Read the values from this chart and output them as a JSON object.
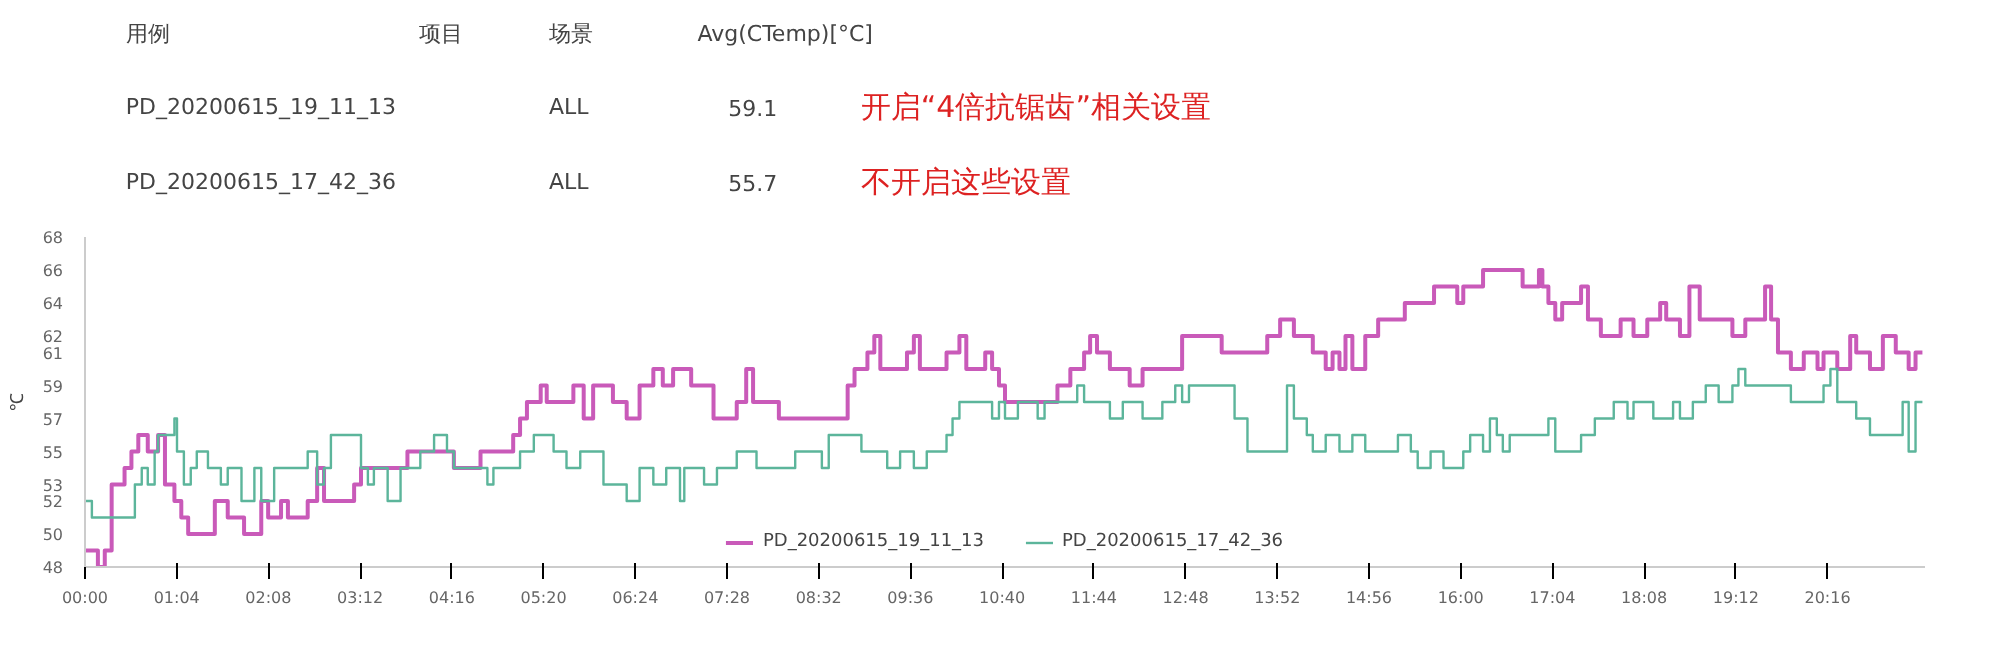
{
  "chart_data": {
    "type": "step",
    "ylabel": "℃",
    "annotations": [
      "用例",
      "项目",
      "场景",
      "Avg(CTemp)[°C]",
      "PD_20200615_19_11_13",
      "ALL",
      "59.1",
      "开启“4倍抗锯齿”相关设置",
      "PD_20200615_17_42_36",
      "ALL",
      "55.7",
      "不开启这些设置"
    ],
    "xlim": [
      0,
      21.4
    ],
    "xticks": [
      {
        "value": 0,
        "label": "00:00"
      },
      {
        "value": 1.0667,
        "label": "01:04"
      },
      {
        "value": 2.1333,
        "label": "02:08"
      },
      {
        "value": 3.2,
        "label": "03:12"
      },
      {
        "value": 4.2667,
        "label": "04:16"
      },
      {
        "value": 5.3333,
        "label": "05:20"
      },
      {
        "value": 6.4,
        "label": "06:24"
      },
      {
        "value": 7.4667,
        "label": "07:28"
      },
      {
        "value": 8.5333,
        "label": "08:32"
      },
      {
        "value": 9.6,
        "label": "09:36"
      },
      {
        "value": 10.6667,
        "label": "10:40"
      },
      {
        "value": 11.7333,
        "label": "11:44"
      },
      {
        "value": 12.8,
        "label": "12:48"
      },
      {
        "value": 13.8667,
        "label": "13:52"
      },
      {
        "value": 14.9333,
        "label": "14:56"
      },
      {
        "value": 16,
        "label": "16:00"
      },
      {
        "value": 17.0667,
        "label": "17:04"
      },
      {
        "value": 18.1333,
        "label": "18:08"
      },
      {
        "value": 19.2,
        "label": "19:12"
      },
      {
        "value": 20.2667,
        "label": "20:16"
      }
    ],
    "ylim": [
      48,
      68
    ],
    "yticks": [
      48,
      50,
      52,
      53,
      55,
      57,
      59,
      61,
      62,
      64,
      66,
      68
    ],
    "grid": false,
    "legend": "bottom",
    "series": [
      {
        "name": "PD_20200615_19_11_13",
        "color": "#c95ab9",
        "x": [
          0,
          0.15,
          0.23,
          0.31,
          0.46,
          0.54,
          0.62,
          0.73,
          0.85,
          0.93,
          1.04,
          1.12,
          1.2,
          1.43,
          1.51,
          1.66,
          1.85,
          2.05,
          2.13,
          2.28,
          2.36,
          2.59,
          2.7,
          2.78,
          3.05,
          3.13,
          3.21,
          3.52,
          3.75,
          3.98,
          4.29,
          4.6,
          4.91,
          4.98,
          5.06,
          5.14,
          5.3,
          5.37,
          5.6,
          5.68,
          5.8,
          5.91,
          6.14,
          6.3,
          6.45,
          6.61,
          6.72,
          6.84,
          7.01,
          7.05,
          7.2,
          7.31,
          7.5,
          7.58,
          7.69,
          7.77,
          7.96,
          8.07,
          8.34,
          8.8,
          8.87,
          8.95,
          9.1,
          9.18,
          9.25,
          9.56,
          9.64,
          9.71,
          10.02,
          10.17,
          10.25,
          10.47,
          10.55,
          10.63,
          10.7,
          11.16,
          11.31,
          11.46,
          11.62,
          11.69,
          11.77,
          11.92,
          12.15,
          12.3,
          12.53,
          12.76,
          12.99,
          13.22,
          13.37,
          13.67,
          13.75,
          13.9,
          13.98,
          14.06,
          14.28,
          14.43,
          14.51,
          14.59,
          14.66,
          14.74,
          14.89,
          15.04,
          15.19,
          15.35,
          15.5,
          15.69,
          15.88,
          15.96,
          16.03,
          16.26,
          16.57,
          16.72,
          16.91,
          16.95,
          17.02,
          17.1,
          17.18,
          17.33,
          17.4,
          17.48,
          17.63,
          17.86,
          18.01,
          18.17,
          18.32,
          18.39,
          18.55,
          18.66,
          18.78,
          18.93,
          19.16,
          19.31,
          19.46,
          19.54,
          19.61,
          19.69,
          19.84,
          19.99,
          20.15,
          20.22,
          20.38,
          20.53,
          20.6,
          20.76,
          20.91,
          21.06,
          21.21,
          21.29,
          21.37
        ],
        "values": [
          49,
          48,
          49,
          53,
          54,
          55,
          56,
          55,
          56,
          53,
          52,
          51,
          50,
          50,
          52,
          51,
          50,
          52,
          51,
          52,
          51,
          52,
          54,
          52,
          52,
          53,
          54,
          54,
          55,
          55,
          54,
          55,
          55,
          56,
          57,
          58,
          59,
          58,
          58,
          59,
          57,
          59,
          58,
          57,
          59,
          60,
          59,
          60,
          60,
          59,
          59,
          57,
          57,
          58,
          60,
          58,
          58,
          57,
          57,
          57,
          59,
          60,
          61,
          62,
          60,
          61,
          62,
          60,
          61,
          62,
          60,
          61,
          60,
          59,
          58,
          58,
          59,
          60,
          61,
          62,
          61,
          60,
          59,
          60,
          60,
          62,
          62,
          61,
          61,
          61,
          62,
          63,
          63,
          62,
          61,
          60,
          61,
          60,
          62,
          60,
          62,
          63,
          63,
          64,
          64,
          65,
          65,
          64,
          65,
          66,
          66,
          65,
          66,
          65,
          64,
          63,
          64,
          64,
          65,
          63,
          62,
          63,
          62,
          63,
          64,
          63,
          62,
          65,
          63,
          63,
          62,
          63,
          63,
          65,
          63,
          61,
          60,
          61,
          60,
          61,
          60,
          62,
          61,
          60,
          62,
          61,
          60,
          61,
          61
        ]
      },
      {
        "name": "PD_20200615_17_42_36",
        "color": "#5cb59b",
        "x": [
          0,
          0.08,
          0.54,
          0.58,
          0.66,
          0.73,
          0.81,
          0.85,
          1.04,
          1.07,
          1.15,
          1.23,
          1.3,
          1.43,
          1.58,
          1.66,
          1.82,
          1.97,
          2.05,
          2.2,
          2.43,
          2.59,
          2.7,
          2.78,
          2.86,
          3.13,
          3.21,
          3.29,
          3.36,
          3.52,
          3.67,
          3.9,
          4.06,
          4.21,
          4.29,
          4.6,
          4.68,
          4.75,
          5.06,
          5.22,
          5.45,
          5.6,
          5.76,
          6.03,
          6.22,
          6.3,
          6.45,
          6.61,
          6.76,
          6.92,
          6.97,
          7.2,
          7.35,
          7.58,
          7.81,
          8.26,
          8.57,
          8.65,
          9.03,
          9.33,
          9.48,
          9.64,
          9.79,
          10.02,
          10.09,
          10.17,
          10.55,
          10.63,
          10.7,
          10.85,
          11.08,
          11.16,
          11.54,
          11.62,
          11.92,
          12.07,
          12.3,
          12.53,
          12.68,
          12.76,
          12.84,
          13.22,
          13.37,
          13.52,
          13.9,
          13.98,
          14.06,
          14.21,
          14.28,
          14.36,
          14.43,
          14.59,
          14.74,
          14.89,
          15.19,
          15.27,
          15.42,
          15.5,
          15.65,
          15.8,
          16.03,
          16.11,
          16.26,
          16.34,
          16.42,
          16.49,
          16.57,
          16.95,
          17.02,
          17.1,
          17.33,
          17.4,
          17.56,
          17.71,
          17.78,
          17.94,
          18.01,
          18.24,
          18.47,
          18.55,
          18.7,
          18.85,
          19.0,
          19.16,
          19.23,
          19.31,
          19.61,
          19.76,
          19.84,
          20.07,
          20.22,
          20.3,
          20.38,
          20.53,
          20.6,
          20.76,
          21.06,
          21.14,
          21.21,
          21.29,
          21.37
        ],
        "values": [
          52,
          51,
          51,
          53,
          54,
          53,
          55,
          56,
          57,
          55,
          53,
          54,
          55,
          54,
          53,
          54,
          52,
          54,
          52,
          54,
          54,
          55,
          53,
          54,
          56,
          56,
          54,
          53,
          54,
          52,
          54,
          55,
          56,
          55,
          54,
          54,
          53,
          54,
          55,
          56,
          55,
          54,
          55,
          53,
          53,
          52,
          54,
          53,
          54,
          52,
          54,
          53,
          54,
          55,
          54,
          55,
          54,
          56,
          55,
          54,
          55,
          54,
          55,
          56,
          57,
          58,
          57,
          58,
          57,
          58,
          57,
          58,
          59,
          58,
          57,
          58,
          57,
          58,
          59,
          58,
          59,
          59,
          57,
          55,
          55,
          59,
          57,
          56,
          55,
          55,
          56,
          55,
          56,
          55,
          55,
          56,
          55,
          54,
          55,
          54,
          55,
          56,
          55,
          57,
          56,
          55,
          56,
          56,
          57,
          55,
          55,
          56,
          57,
          57,
          58,
          57,
          58,
          57,
          58,
          57,
          58,
          59,
          58,
          59,
          60,
          59,
          59,
          59,
          58,
          58,
          59,
          60,
          58,
          58,
          57,
          56,
          56,
          58,
          55,
          58,
          58
        ]
      }
    ]
  }
}
